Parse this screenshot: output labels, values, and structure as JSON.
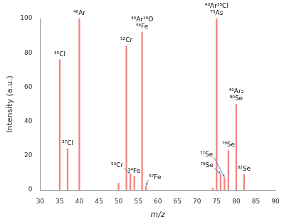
{
  "chart_data": {
    "type": "bar",
    "x_label": "m/z",
    "y_label": "Intensity (a.u.)",
    "x": [
      35,
      37,
      40,
      50,
      52,
      53,
      54,
      56,
      57,
      74,
      75,
      76,
      77,
      78,
      80,
      82
    ],
    "values": [
      76,
      24,
      100,
      4,
      84,
      9,
      8,
      92,
      2,
      1,
      100,
      9,
      7,
      23,
      50,
      9
    ],
    "annotations": [
      [
        "³⁵Cl"
      ],
      [
        "³⁷Cl"
      ],
      [
        "⁴⁰Ar"
      ],
      null,
      [
        "⁵²Cr"
      ],
      [
        "⁵³Cr"
      ],
      [
        "⁵⁴Fe"
      ],
      [
        "⁴⁰Ar¹⁶O",
        "⁵⁶Fe"
      ],
      [
        "⁵⁷Fe"
      ],
      null,
      [
        "⁴⁰Ar³⁵Cl",
        "⁷⁵As"
      ],
      [
        "⁷⁶Se"
      ],
      [
        "⁷⁷Se"
      ],
      [
        "⁷⁸Se"
      ],
      [
        "⁴⁰Ar₂",
        "⁸⁰Se"
      ],
      [
        "⁸²Se"
      ]
    ],
    "color": "#f4837d",
    "xlim": [
      30,
      90
    ],
    "xticks": [
      30,
      35,
      40,
      45,
      50,
      55,
      60,
      65,
      70,
      75,
      80,
      85,
      90
    ],
    "ylim": [
      0,
      100
    ],
    "yticks": [
      0,
      20,
      40,
      60,
      80,
      100
    ],
    "grid": false
  }
}
